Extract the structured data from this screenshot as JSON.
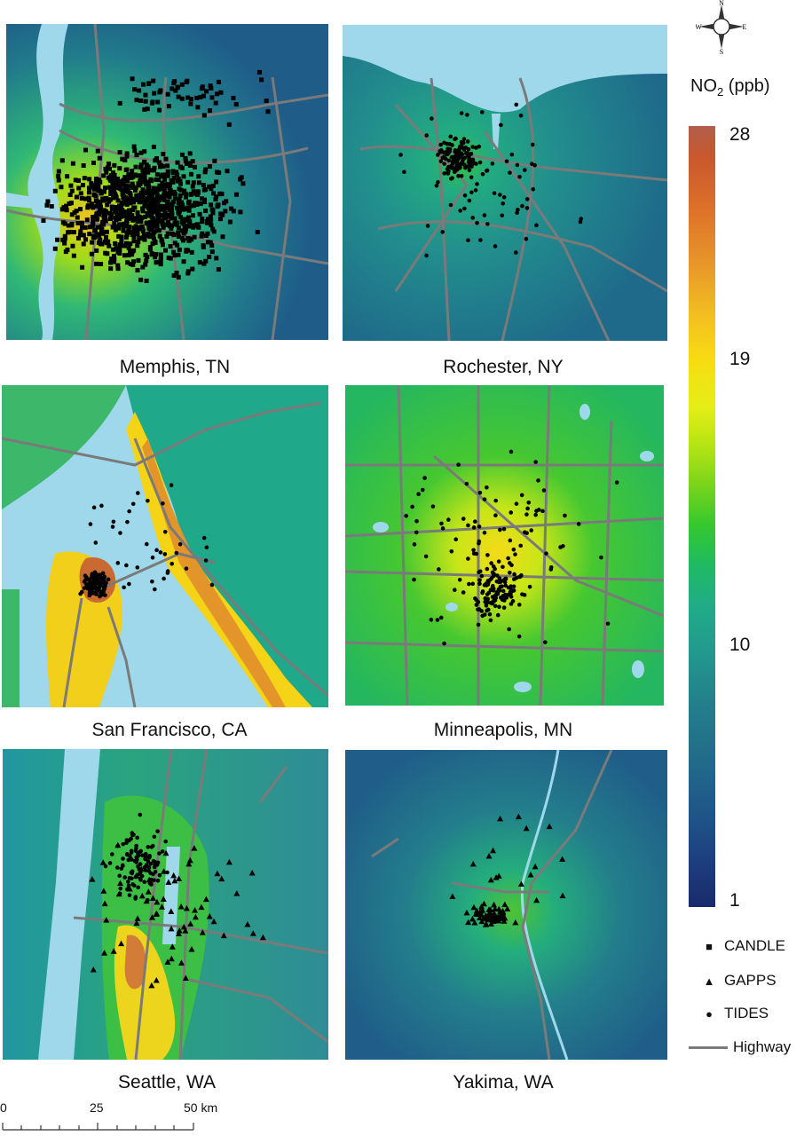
{
  "panels": [
    {
      "id": "memphis",
      "caption": "Memphis, TN"
    },
    {
      "id": "rochester",
      "caption": "Rochester, NY"
    },
    {
      "id": "sanfrancisco",
      "caption": "San Francisco, CA"
    },
    {
      "id": "minneapolis",
      "caption": "Minneapolis, MN"
    },
    {
      "id": "seattle",
      "caption": "Seattle, WA"
    },
    {
      "id": "yakima",
      "caption": "Yakima, WA"
    }
  ],
  "legend": {
    "title_main": "NO",
    "title_sub": "2",
    "title_unit": " (ppb)",
    "ticks": [
      "28",
      "19",
      "10",
      "1"
    ],
    "cohorts": [
      {
        "symbol": "■",
        "label": "CANDLE"
      },
      {
        "symbol": "▲",
        "label": "GAPPS"
      },
      {
        "symbol": "●",
        "label": "TIDES"
      },
      {
        "symbol": "line",
        "label": "Highway"
      }
    ]
  },
  "compass": {
    "n": "N",
    "s": "S",
    "e": "E",
    "w": "W"
  },
  "scale_bar": {
    "labels": [
      "0",
      "25",
      "50 km"
    ]
  },
  "colors": {
    "water": "#9fd8ea",
    "low": "#1f5288",
    "mid": "#20ad86",
    "high": "#f7dc12",
    "peak": "#dc6e2a",
    "highway": "#7a7a7a"
  }
}
